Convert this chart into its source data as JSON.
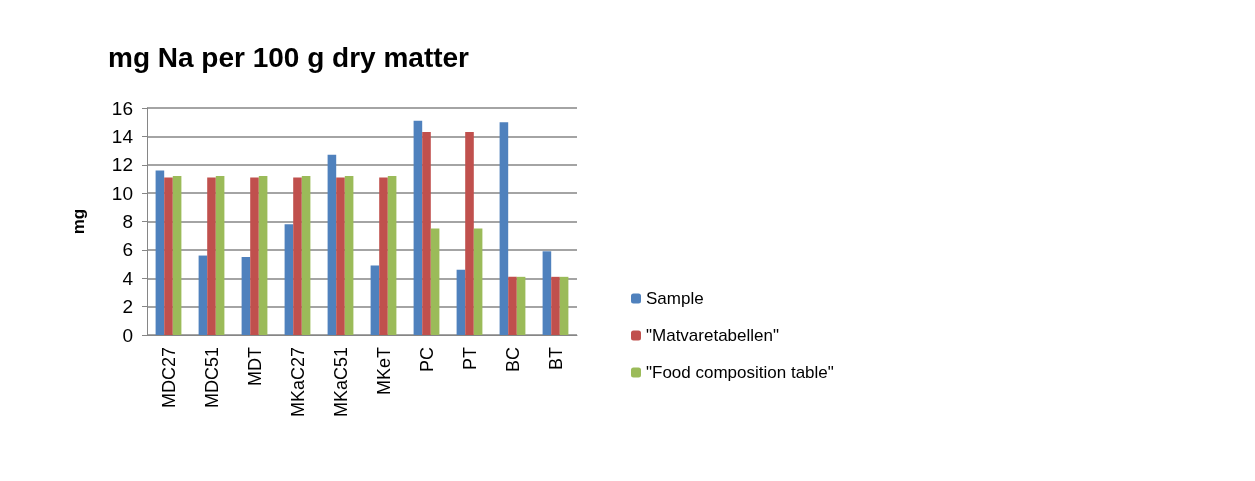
{
  "chart_data": {
    "type": "bar",
    "title": "mg Na per 100 g dry matter",
    "ylabel": "mg",
    "categories": [
      "MDC27",
      "MDC51",
      "MDT",
      "MKaC27",
      "MKaC51",
      "MKeT",
      "PC",
      "PT",
      "BC",
      "BT"
    ],
    "series": [
      {
        "name": "Sample",
        "color": "#4f81bd",
        "values": [
          11.6,
          5.6,
          5.5,
          7.8,
          12.7,
          4.9,
          15.1,
          4.6,
          15.0,
          5.9
        ]
      },
      {
        "name": "\"Matvaretabellen\"",
        "color": "#c0504d",
        "values": [
          11.1,
          11.1,
          11.1,
          11.1,
          11.1,
          11.1,
          14.3,
          14.3,
          4.1,
          4.1
        ]
      },
      {
        "name": "\"Food composition table\"",
        "color": "#9bbb59",
        "values": [
          11.2,
          11.2,
          11.2,
          11.2,
          11.2,
          11.2,
          7.5,
          7.5,
          4.1,
          4.1
        ]
      }
    ],
    "ylim": [
      0,
      16
    ],
    "yticks": [
      0,
      2,
      4,
      6,
      8,
      10,
      12,
      14,
      16
    ],
    "grid": "y",
    "legend": "right"
  }
}
